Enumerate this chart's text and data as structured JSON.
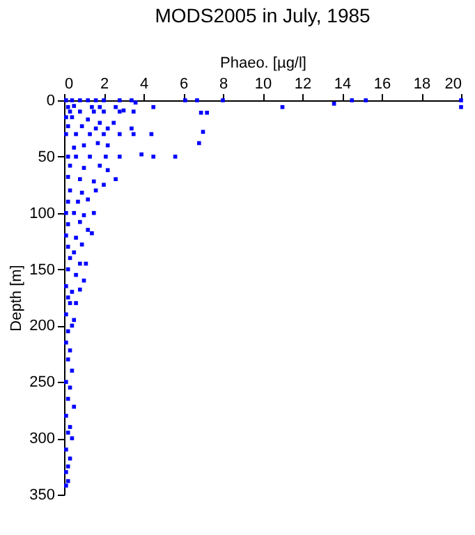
{
  "chart_data": {
    "type": "scatter",
    "title": "MODS2005 in July, 1985",
    "xlabel": "Phaeo. [µg/l]",
    "ylabel": "Depth [m]",
    "xlim": [
      0,
      20
    ],
    "xticks": [
      0,
      2,
      4,
      6,
      8,
      10,
      12,
      14,
      16,
      18,
      20
    ],
    "ylim": [
      350,
      0
    ],
    "yticks": [
      0,
      50,
      100,
      150,
      200,
      250,
      300,
      350
    ],
    "grid": false,
    "marker": "square",
    "series": [
      {
        "color": "#0000ff",
        "x": [
          0.1,
          0.4,
          0.8,
          1.2,
          1.6,
          2.0,
          2.8,
          3.4,
          3.6,
          6.1,
          6.7,
          8.0,
          14.5,
          15.2,
          13.6,
          11.0,
          20.0,
          20.0,
          0.2,
          0.5,
          1.4,
          1.8,
          2.6,
          3.0,
          4.5,
          0.3,
          0.8,
          1.5,
          2.0,
          2.8,
          3.5,
          6.9,
          7.2,
          0.1,
          0.4,
          1.2,
          1.8,
          2.5,
          0.2,
          0.9,
          1.6,
          2.2,
          3.4,
          0.1,
          0.6,
          1.3,
          2.0,
          2.8,
          3.5,
          4.4,
          7.0,
          6.8,
          1.7,
          2.2,
          0.5,
          1.0,
          0.2,
          0.6,
          1.3,
          2.1,
          2.8,
          3.9,
          4.5,
          5.6,
          0.3,
          1.0,
          1.8,
          2.2,
          2.6,
          0.2,
          0.8,
          1.5,
          2.0,
          0.3,
          0.9,
          1.6,
          0.2,
          0.7,
          1.2,
          0.1,
          0.5,
          1.0,
          1.5,
          0.2,
          0.8,
          1.2,
          0.1,
          0.6,
          1.4,
          0.2,
          0.5,
          0.9,
          0.3,
          1.1,
          0.8,
          0.2,
          0.6,
          1.0,
          0.1,
          0.4,
          0.8,
          0.2,
          0.6,
          0.3,
          0.1,
          0.5,
          0.2,
          0.4,
          0.1,
          0.3,
          0.2,
          0.4,
          0.1,
          0.3,
          0.2,
          0.5,
          0.1,
          0.3,
          0.2,
          0.4,
          0.1,
          0.3,
          0.2,
          0.1,
          0.2,
          0.1
        ],
        "values": [
          0,
          0,
          0,
          0,
          0,
          0,
          0,
          0,
          2,
          0,
          0,
          0,
          0,
          0,
          3,
          6,
          0,
          6,
          6,
          5,
          6,
          6,
          6,
          9,
          6,
          10,
          10,
          10,
          10,
          10,
          10,
          11,
          11,
          15,
          15,
          17,
          20,
          20,
          23,
          23,
          25,
          25,
          25,
          30,
          30,
          30,
          30,
          30,
          30,
          30,
          28,
          38,
          38,
          40,
          42,
          40,
          50,
          50,
          50,
          50,
          50,
          48,
          50,
          50,
          58,
          60,
          58,
          62,
          70,
          68,
          70,
          72,
          75,
          80,
          82,
          80,
          90,
          90,
          88,
          100,
          100,
          102,
          100,
          110,
          108,
          115,
          120,
          122,
          118,
          130,
          135,
          128,
          140,
          145,
          145,
          150,
          155,
          160,
          165,
          170,
          168,
          175,
          180,
          180,
          190,
          195,
          205,
          200,
          215,
          222,
          230,
          240,
          250,
          255,
          265,
          272,
          280,
          290,
          295,
          300,
          310,
          318,
          325,
          330,
          338,
          342
        ]
      }
    ]
  }
}
